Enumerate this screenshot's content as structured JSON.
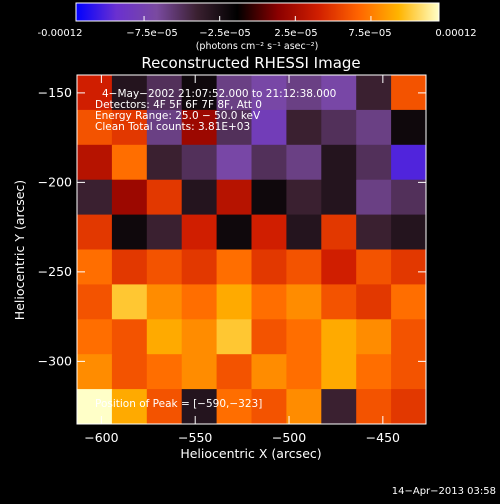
{
  "colors": {
    "background": "#000000",
    "foreground": "#ffffff",
    "colormap": [
      "#0000ff",
      "#6a30d0",
      "#7a4aa0",
      "#3a2030",
      "#000000",
      "#8a0000",
      "#d01e00",
      "#ff6400",
      "#ffb400",
      "#ffffc8"
    ]
  },
  "colorbar": {
    "tick_labels": [
      "-0.00012",
      "−7.5e−05",
      "−2.5e−05",
      "2.5e−05",
      "7.5e−05",
      "0.00012"
    ],
    "tick_values": [
      -0.00012,
      -7.5e-05,
      -2.5e-05,
      2.5e-05,
      7.5e-05,
      0.00012
    ],
    "range": [
      -0.00012,
      0.00012
    ],
    "units": "(photons cm⁻² s⁻¹ asec⁻²)"
  },
  "annotations": {
    "time": "4−May−2002 21:07:52.000 to 21:12:38.000",
    "detectors": "Detectors: 4F 5F 6F 7F 8F, Att 0",
    "energy": "Energy Range: 25.0 − 50.0 keV",
    "counts": "Clean    Total counts: 3.81E+03",
    "peak": "Position of Peak = [−590,−323]"
  },
  "timestamp": "14−Apr−2013 03:58",
  "chart_data": {
    "type": "heatmap",
    "title": "Reconstructed RHESSI Image",
    "xlabel": "Heliocentric X (arcsec)",
    "ylabel": "Heliocentric Y (arcsec)",
    "xlim": [
      -613,
      -427
    ],
    "ylim": [
      -335,
      -140
    ],
    "x_ticks": [
      -600,
      -550,
      -500,
      -450
    ],
    "x_tick_labels": [
      "−600",
      "−550",
      "−500",
      "−450"
    ],
    "y_ticks": [
      -150,
      -200,
      -250,
      -300
    ],
    "y_tick_labels": [
      "−150",
      "−200",
      "−250",
      "−300"
    ],
    "peak_position": [
      -590,
      -323
    ],
    "grid": false,
    "cols": 10,
    "rows": 10,
    "values": [
      [
        4e-05,
        -3e-05,
        -5e-05,
        -2e-05,
        -6e-05,
        -7e-05,
        -6e-05,
        -7e-05,
        -4e-05,
        6e-05
      ],
      [
        6e-05,
        5e-05,
        -6e-05,
        2e-05,
        -5e-05,
        -8e-05,
        -4e-05,
        -5e-05,
        -6e-05,
        -2e-05
      ],
      [
        3e-05,
        7e-05,
        -4e-05,
        -5e-05,
        -7e-05,
        -5e-05,
        -6e-05,
        -3e-05,
        -5e-05,
        -0.0001
      ],
      [
        -4e-05,
        2e-05,
        5e-05,
        -3e-05,
        3e-05,
        -2e-05,
        -4e-05,
        -3e-05,
        -6e-05,
        -5e-05
      ],
      [
        5e-05,
        -2e-05,
        -4e-05,
        4e-05,
        -2e-05,
        4e-05,
        -3e-05,
        5e-05,
        -4e-05,
        -3e-05
      ],
      [
        7e-05,
        5e-05,
        6e-05,
        5e-05,
        7e-05,
        5e-05,
        6e-05,
        4e-05,
        6e-05,
        5e-05
      ],
      [
        6e-05,
        0.0001,
        8e-05,
        7e-05,
        9e-05,
        7e-05,
        8e-05,
        6e-05,
        5e-05,
        7e-05
      ],
      [
        7e-05,
        6e-05,
        9e-05,
        8e-05,
        0.0001,
        6e-05,
        7e-05,
        9e-05,
        8e-05,
        6e-05
      ],
      [
        8e-05,
        6e-05,
        7e-05,
        8e-05,
        6e-05,
        8e-05,
        7e-05,
        9e-05,
        7e-05,
        6e-05
      ],
      [
        0.00012,
        9e-05,
        6e-05,
        -3e-05,
        7e-05,
        6e-05,
        8e-05,
        -4e-05,
        6e-05,
        5e-05
      ]
    ]
  }
}
